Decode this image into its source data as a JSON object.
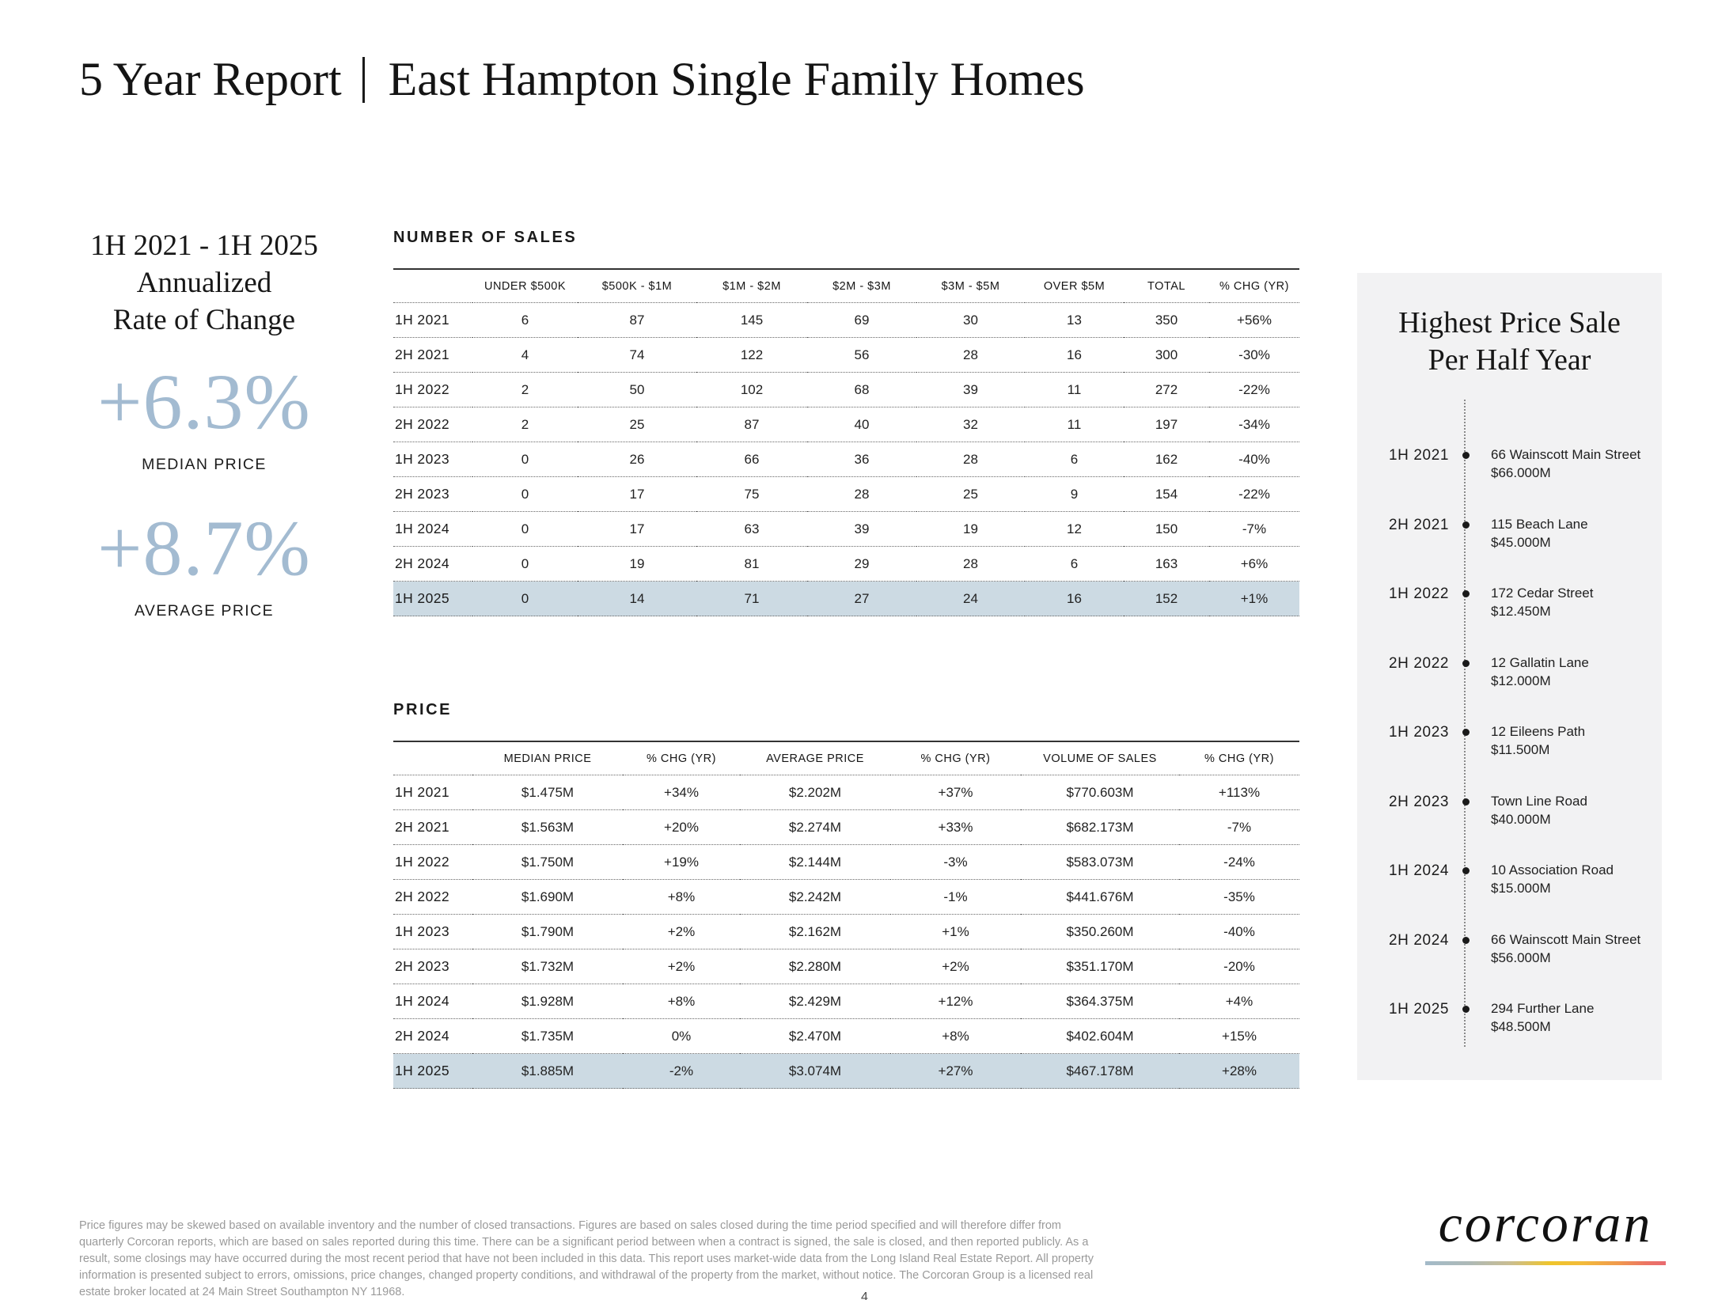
{
  "page": {
    "title_left": "5 Year Report",
    "title_right": "East Hampton Single Family Homes",
    "page_number": "4"
  },
  "stats": {
    "heading_line1": "1H 2021 - 1H 2025",
    "heading_line2": "Annualized",
    "heading_line3": "Rate of Change",
    "items": [
      {
        "value": "+6.3%",
        "label": "MEDIAN PRICE"
      },
      {
        "value": "+8.7%",
        "label": "AVERAGE PRICE"
      }
    ]
  },
  "colors": {
    "accent_blue": "#a3bbd1",
    "highlight_row": "#ccdae3",
    "panel_background": "#f2f2f3"
  },
  "sales_table": {
    "section_title": "NUMBER OF SALES",
    "columns": [
      "",
      "UNDER $500K",
      "$500K - $1M",
      "$1M - $2M",
      "$2M - $3M",
      "$3M - $5M",
      "OVER $5M",
      "TOTAL",
      "% CHG (YR)"
    ],
    "rows": [
      {
        "label": "1H 2021",
        "cells": [
          "6",
          "87",
          "145",
          "69",
          "30",
          "13",
          "350",
          "+56%"
        ],
        "highlight": false
      },
      {
        "label": "2H 2021",
        "cells": [
          "4",
          "74",
          "122",
          "56",
          "28",
          "16",
          "300",
          "-30%"
        ],
        "highlight": false
      },
      {
        "label": "1H 2022",
        "cells": [
          "2",
          "50",
          "102",
          "68",
          "39",
          "11",
          "272",
          "-22%"
        ],
        "highlight": false
      },
      {
        "label": "2H 2022",
        "cells": [
          "2",
          "25",
          "87",
          "40",
          "32",
          "11",
          "197",
          "-34%"
        ],
        "highlight": false
      },
      {
        "label": "1H 2023",
        "cells": [
          "0",
          "26",
          "66",
          "36",
          "28",
          "6",
          "162",
          "-40%"
        ],
        "highlight": false
      },
      {
        "label": "2H 2023",
        "cells": [
          "0",
          "17",
          "75",
          "28",
          "25",
          "9",
          "154",
          "-22%"
        ],
        "highlight": false
      },
      {
        "label": "1H 2024",
        "cells": [
          "0",
          "17",
          "63",
          "39",
          "19",
          "12",
          "150",
          "-7%"
        ],
        "highlight": false
      },
      {
        "label": "2H 2024",
        "cells": [
          "0",
          "19",
          "81",
          "29",
          "28",
          "6",
          "163",
          "+6%"
        ],
        "highlight": false
      },
      {
        "label": "1H 2025",
        "cells": [
          "0",
          "14",
          "71",
          "27",
          "24",
          "16",
          "152",
          "+1%"
        ],
        "highlight": true
      }
    ]
  },
  "price_table": {
    "section_title": "PRICE",
    "columns": [
      "",
      "MEDIAN PRICE",
      "% CHG (YR)",
      "AVERAGE PRICE",
      "% CHG (YR)",
      "VOLUME OF SALES",
      "% CHG (YR)"
    ],
    "rows": [
      {
        "label": "1H 2021",
        "cells": [
          "$1.475M",
          "+34%",
          "$2.202M",
          "+37%",
          "$770.603M",
          "+113%"
        ],
        "highlight": false
      },
      {
        "label": "2H 2021",
        "cells": [
          "$1.563M",
          "+20%",
          "$2.274M",
          "+33%",
          "$682.173M",
          "-7%"
        ],
        "highlight": false
      },
      {
        "label": "1H 2022",
        "cells": [
          "$1.750M",
          "+19%",
          "$2.144M",
          "-3%",
          "$583.073M",
          "-24%"
        ],
        "highlight": false
      },
      {
        "label": "2H 2022",
        "cells": [
          "$1.690M",
          "+8%",
          "$2.242M",
          "-1%",
          "$441.676M",
          "-35%"
        ],
        "highlight": false
      },
      {
        "label": "1H 2023",
        "cells": [
          "$1.790M",
          "+2%",
          "$2.162M",
          "+1%",
          "$350.260M",
          "-40%"
        ],
        "highlight": false
      },
      {
        "label": "2H 2023",
        "cells": [
          "$1.732M",
          "+2%",
          "$2.280M",
          "+2%",
          "$351.170M",
          "-20%"
        ],
        "highlight": false
      },
      {
        "label": "1H 2024",
        "cells": [
          "$1.928M",
          "+8%",
          "$2.429M",
          "+12%",
          "$364.375M",
          "+4%"
        ],
        "highlight": false
      },
      {
        "label": "2H 2024",
        "cells": [
          "$1.735M",
          "0%",
          "$2.470M",
          "+8%",
          "$402.604M",
          "+15%"
        ],
        "highlight": false
      },
      {
        "label": "1H 2025",
        "cells": [
          "$1.885M",
          "-2%",
          "$3.074M",
          "+27%",
          "$467.178M",
          "+28%"
        ],
        "highlight": true
      }
    ]
  },
  "timeline": {
    "title_line1": "Highest Price Sale",
    "title_line2": "Per Half Year",
    "entries": [
      {
        "period": "1H 2021",
        "address": "66 Wainscott Main Street",
        "price": "$66.000M"
      },
      {
        "period": "2H 2021",
        "address": "115 Beach Lane",
        "price": "$45.000M"
      },
      {
        "period": "1H 2022",
        "address": "172 Cedar Street",
        "price": "$12.450M"
      },
      {
        "period": "2H 2022",
        "address": "12 Gallatin Lane",
        "price": "$12.000M"
      },
      {
        "period": "1H 2023",
        "address": "12 Eileens Path",
        "price": "$11.500M"
      },
      {
        "period": "2H 2023",
        "address": "Town Line Road",
        "price": "$40.000M"
      },
      {
        "period": "1H 2024",
        "address": "10 Association Road",
        "price": "$15.000M"
      },
      {
        "period": "2H 2024",
        "address": "66 Wainscott Main Street",
        "price": "$56.000M"
      },
      {
        "period": "1H 2025",
        "address": "294 Further Lane",
        "price": "$48.500M"
      }
    ]
  },
  "footer": {
    "disclaimer": "Price figures may be skewed based on available inventory and the number of closed transactions. Figures are based on sales closed during the time period specified and will therefore differ from quarterly Corcoran reports, which are based on sales reported during this time. There can be a significant period between when a contract is signed, the sale is closed, and then reported publicly. As a result, some closings may have occurred during the most recent period that have not been included in this data. This report uses market-wide data from the Long Island Real Estate Report. All property information is presented subject to errors, omissions, price changes, changed property conditions, and withdrawal of the property from the market, without notice. The Corcoran Group is a licensed real estate broker located at 24 Main Street Southampton NY 11968.",
    "logo_text": "corcoran"
  }
}
